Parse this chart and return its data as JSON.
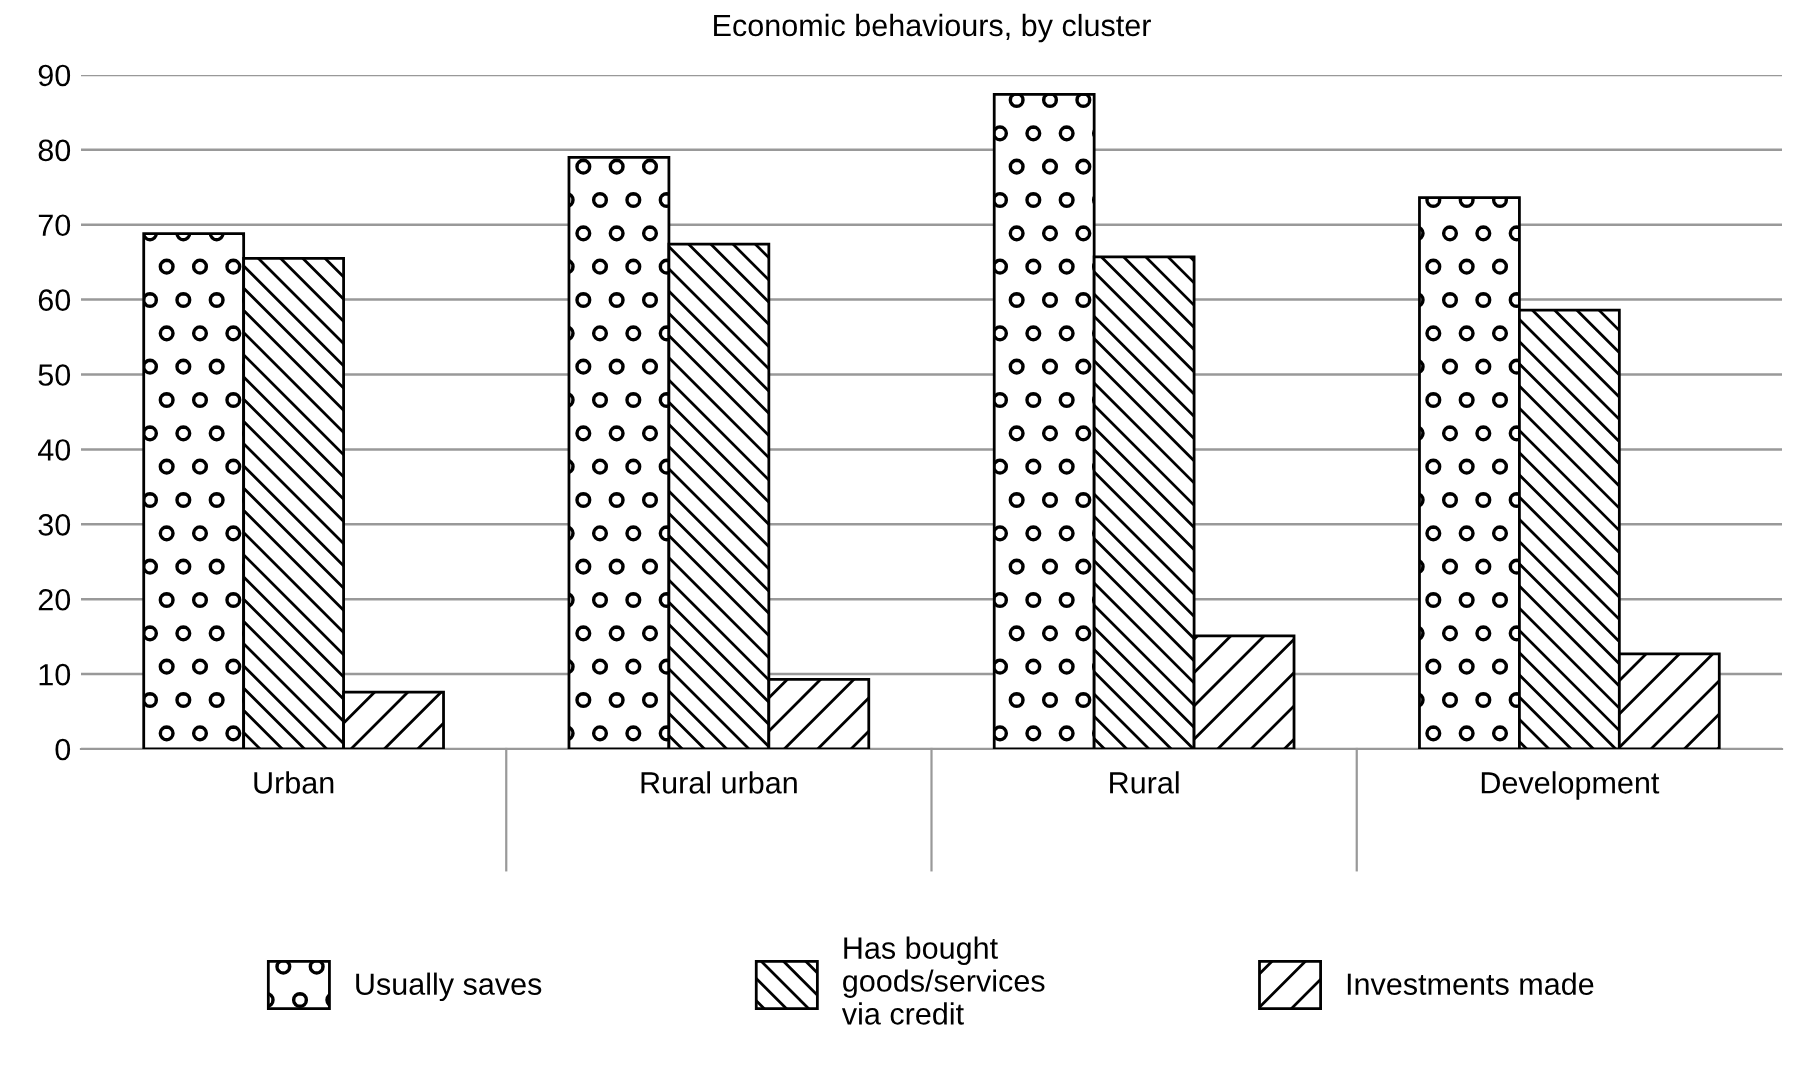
{
  "chart_data": {
    "type": "bar",
    "title": "Economic behaviours, by cluster",
    "categories": [
      "Urban",
      "Rural urban",
      "Rural",
      "Development"
    ],
    "series": [
      {
        "name": "Usually saves",
        "color": "#000000",
        "values": [
          68.8,
          79,
          87.4,
          73.6
        ]
      },
      {
        "name": "Has bought\ngoods/services\nvia credit",
        "color": "#000000",
        "values": [
          65.5,
          67.4,
          65.7,
          58.6
        ]
      },
      {
        "name": "Investments made",
        "color": "#000000",
        "values": [
          7.6,
          9.3,
          15.1,
          12.7
        ]
      }
    ],
    "ylim": [
      0,
      90
    ],
    "yticks": [
      0,
      10,
      20,
      30,
      40,
      50,
      60,
      70,
      80,
      90
    ],
    "grid": "y",
    "legend": "bottom"
  }
}
